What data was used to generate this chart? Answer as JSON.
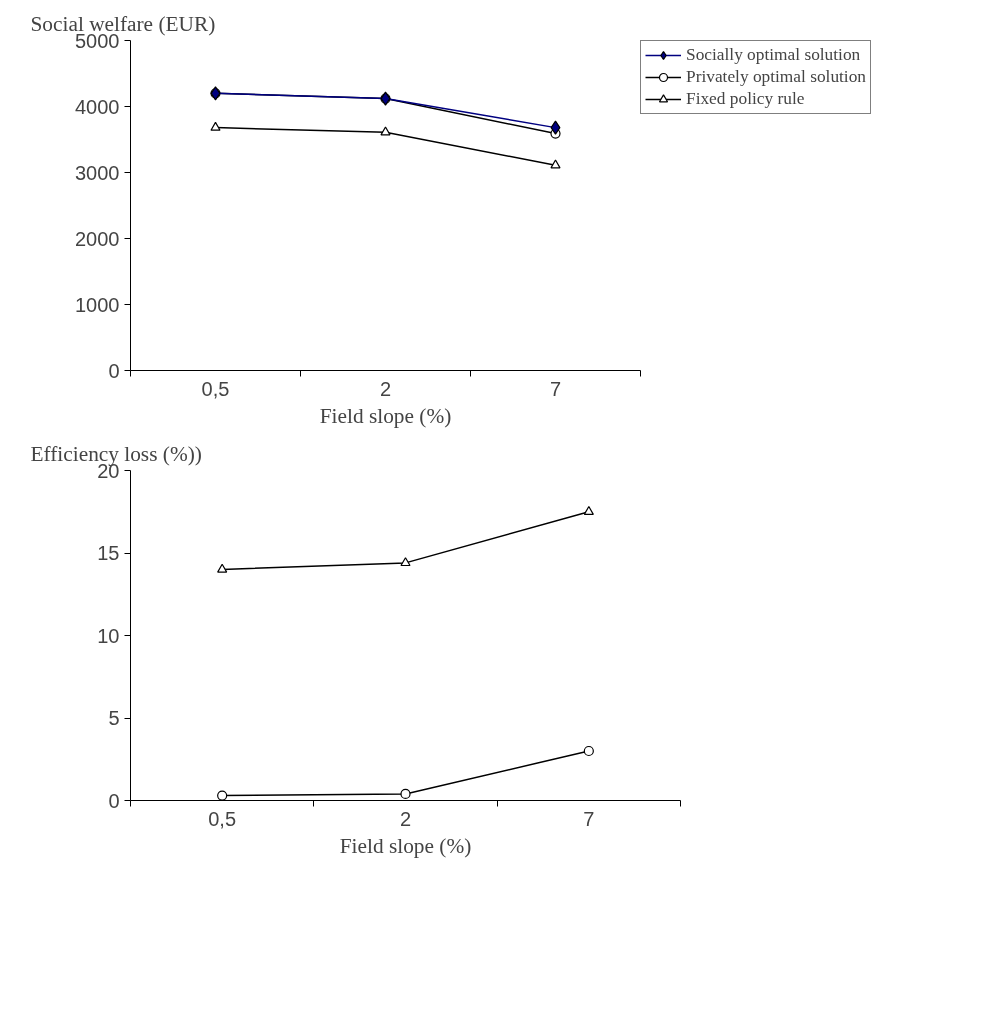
{
  "chart_data": [
    {
      "type": "line",
      "ylabel": "Social welfare (EUR)",
      "xlabel": "Field slope (%)",
      "categories": [
        "0,5",
        "2",
        "7"
      ],
      "ylim": [
        0,
        5000
      ],
      "yticks": [
        0,
        1000,
        2000,
        3000,
        4000,
        5000
      ],
      "grid": false,
      "legend": "right",
      "series": [
        {
          "name": "Socially optimal solution",
          "color": "#000080",
          "marker": "diamond",
          "values": [
            4200,
            4120,
            3680
          ]
        },
        {
          "name": "Privately optimal solution",
          "color": "#000000",
          "marker": "circle",
          "values": [
            4200,
            4120,
            3590
          ]
        },
        {
          "name": "Fixed policy rule",
          "color": "#000000",
          "marker": "triangle",
          "values": [
            3680,
            3610,
            3110
          ]
        }
      ]
    },
    {
      "type": "line",
      "ylabel": "Efficiency loss (%))",
      "xlabel": "Field slope (%)",
      "categories": [
        "0,5",
        "2",
        "7"
      ],
      "ylim": [
        0,
        20
      ],
      "yticks": [
        0,
        5,
        10,
        15,
        20
      ],
      "grid": false,
      "legend": false,
      "series": [
        {
          "color": "#000000",
          "marker": "circle",
          "values": [
            0.3,
            0.4,
            3.0
          ]
        },
        {
          "color": "#000000",
          "marker": "triangle",
          "values": [
            14.0,
            14.4,
            17.5
          ]
        }
      ]
    }
  ]
}
